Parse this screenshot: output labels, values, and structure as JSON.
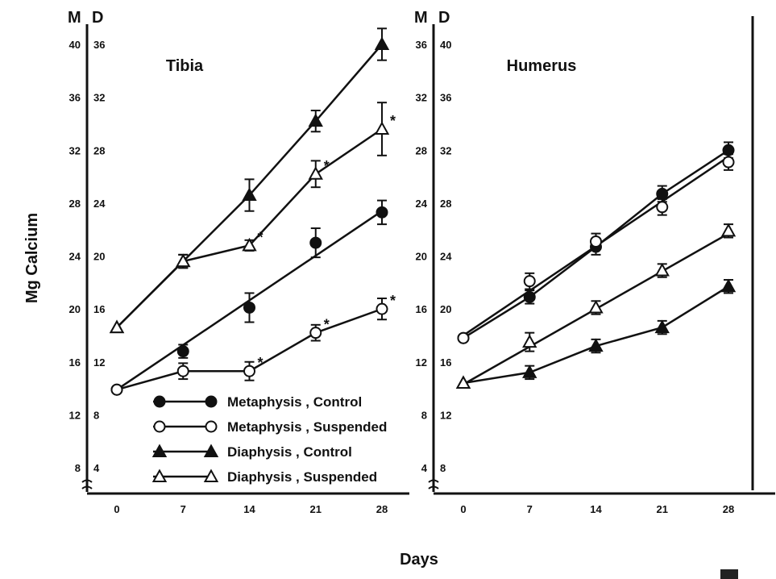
{
  "chart_data": {
    "type": "line",
    "ylabel": "Mg Calcium",
    "xlabel": "Days",
    "legend": {
      "placement": "bottom-left of first panel",
      "entries": [
        {
          "label": "Metaphysis , Control",
          "marker": "filled-circle"
        },
        {
          "label": "Metaphysis , Suspended",
          "marker": "open-circle"
        },
        {
          "label": "Diaphysis , Control",
          "marker": "filled-triangle"
        },
        {
          "label": "Diaphysis , Suspended",
          "marker": "open-triangle"
        }
      ]
    },
    "panels": [
      {
        "title": "Tibia",
        "x_ticks": [
          0,
          7,
          14,
          21,
          28
        ],
        "axis_headers": {
          "metaphysis": "M",
          "diaphysis": "D"
        },
        "metaphysis_ticks": [
          8,
          12,
          16,
          20,
          24,
          28,
          32,
          36,
          40
        ],
        "diaphysis_ticks": [
          4,
          8,
          12,
          16,
          20,
          24,
          28,
          32,
          36
        ],
        "metaphysis_range": [
          8,
          40
        ],
        "series": [
          {
            "name": "Metaphysis , Control",
            "axis": "metaphysis",
            "marker": "filled-circle",
            "x": [
              0,
              7,
              14,
              21,
              28
            ],
            "y": [
              13.9,
              16.8,
              20.1,
              25.0,
              27.3
            ],
            "err": [
              0,
              0.5,
              1.1,
              1.1,
              0.9
            ],
            "fit": [
              [
                0,
                13.9
              ],
              [
                28,
                27.4
              ]
            ]
          },
          {
            "name": "Metaphysis , Suspended",
            "axis": "metaphysis",
            "marker": "open-circle",
            "x": [
              0,
              7,
              14,
              21,
              28
            ],
            "y": [
              13.9,
              15.3,
              15.3,
              18.2,
              20.0
            ],
            "err": [
              0,
              0.6,
              0.7,
              0.6,
              0.8
            ],
            "significant": [
              false,
              false,
              true,
              true,
              true
            ]
          },
          {
            "name": "Diaphysis , Control",
            "axis": "diaphysis",
            "marker": "filled-triangle",
            "x": [
              0,
              7,
              14,
              21,
              28
            ],
            "y": [
              14.6,
              19.6,
              24.6,
              30.2,
              36.0
            ],
            "err": [
              0,
              0.5,
              1.2,
              0.8,
              1.2
            ]
          },
          {
            "name": "Diaphysis , Suspended",
            "axis": "diaphysis",
            "marker": "open-triangle",
            "x": [
              0,
              7,
              14,
              21,
              28
            ],
            "y": [
              14.6,
              19.6,
              20.8,
              26.2,
              29.6
            ],
            "err": [
              0,
              0.5,
              0.4,
              1.0,
              2.0
            ],
            "significant": [
              false,
              false,
              true,
              true,
              true
            ]
          }
        ]
      },
      {
        "title": "Humerus",
        "x_ticks": [
          0,
          7,
          14,
          21,
          28
        ],
        "axis_headers": {
          "metaphysis": "M",
          "diaphysis": "D"
        },
        "metaphysis_ticks": [
          4,
          8,
          12,
          16,
          20,
          24,
          28,
          32,
          36
        ],
        "diaphysis_ticks": [
          8,
          12,
          16,
          20,
          24,
          28,
          32,
          36,
          40
        ],
        "metaphysis_range": [
          4,
          36
        ],
        "series": [
          {
            "name": "Metaphysis , Control",
            "axis": "metaphysis",
            "marker": "filled-circle",
            "x": [
              0,
              7,
              14,
              21,
              28
            ],
            "y": [
              13.8,
              16.9,
              20.7,
              24.7,
              28.0
            ],
            "err": [
              0,
              0.5,
              0.6,
              0.6,
              0.6
            ]
          },
          {
            "name": "Metaphysis , Suspended",
            "axis": "metaphysis",
            "marker": "open-circle",
            "x": [
              0,
              7,
              14,
              21,
              28
            ],
            "y": [
              13.8,
              18.1,
              21.1,
              23.7,
              27.1
            ],
            "err": [
              0,
              0.6,
              0.6,
              0.6,
              0.6
            ],
            "fit": [
              [
                0,
                14.0
              ],
              [
                28,
                27.5
              ]
            ]
          },
          {
            "name": "Diaphysis , Control",
            "axis": "diaphysis",
            "marker": "filled-triangle",
            "x": [
              0,
              7,
              14,
              21,
              28
            ],
            "y": [
              14.4,
              15.2,
              17.2,
              18.6,
              21.7
            ],
            "err": [
              0,
              0.5,
              0.5,
              0.5,
              0.5
            ]
          },
          {
            "name": "Diaphysis , Suspended",
            "axis": "diaphysis",
            "marker": "open-triangle",
            "x": [
              0,
              7,
              14,
              21,
              28
            ],
            "y": [
              14.4,
              17.5,
              20.1,
              22.9,
              25.9
            ],
            "err": [
              0,
              0.7,
              0.5,
              0.5,
              0.5
            ],
            "fit": [
              [
                0,
                14.3
              ],
              [
                28,
                25.7
              ]
            ]
          }
        ]
      }
    ]
  }
}
